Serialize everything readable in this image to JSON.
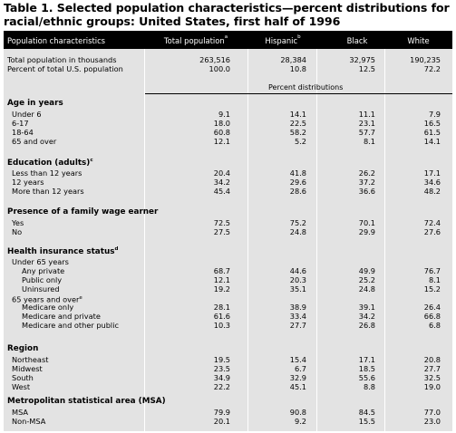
{
  "title": "Table 1.  Selected population characteristics—percent distributions for racial/ethnic groups: United States, first half of 1996",
  "header": {
    "col0": "Population characteristics",
    "col1": "Total population",
    "col1_sup": "a",
    "col2": "Hispanic",
    "col2_sup": "b",
    "col3": "Black",
    "col4": "White"
  },
  "summary_rows": [
    {
      "label": "Total population in thousands",
      "values": [
        "263,516",
        "28,384",
        "32,975",
        "190,235"
      ]
    },
    {
      "label": "Percent of total U.S. population",
      "values": [
        "100.0",
        "10.8",
        "12.5",
        "72.2"
      ]
    }
  ],
  "percent_label": "Percent distributions",
  "sections": [
    {
      "title": "Age in years",
      "title_sup": "",
      "rows": [
        {
          "label": "Under 6",
          "indent": 1,
          "values": [
            "9.1",
            "14.1",
            "11.1",
            "7.9"
          ]
        },
        {
          "label": "6-17",
          "indent": 1,
          "values": [
            "18.0",
            "22.5",
            "23.1",
            "16.5"
          ]
        },
        {
          "label": "18-64",
          "indent": 1,
          "values": [
            "60.8",
            "58.2",
            "57.7",
            "61.5"
          ]
        },
        {
          "label": "65 and over",
          "indent": 1,
          "values": [
            "12.1",
            "5.2",
            "8.1",
            "14.1"
          ]
        }
      ]
    },
    {
      "title": "Education (adults)",
      "title_sup": "c",
      "rows": [
        {
          "label": "Less than 12 years",
          "indent": 1,
          "values": [
            "20.4",
            "41.8",
            "26.2",
            "17.1"
          ]
        },
        {
          "label": "12 years",
          "indent": 1,
          "values": [
            "34.2",
            "29.6",
            "37.2",
            "34.6"
          ]
        },
        {
          "label": "More than 12 years",
          "indent": 1,
          "values": [
            "45.4",
            "28.6",
            "36.6",
            "48.2"
          ]
        }
      ]
    },
    {
      "title": "Presence of a family wage earner",
      "title_sup": "",
      "rows": [
        {
          "label": "Yes",
          "indent": 1,
          "values": [
            "72.5",
            "75.2",
            "70.1",
            "72.4"
          ]
        },
        {
          "label": "No",
          "indent": 1,
          "values": [
            "27.5",
            "24.8",
            "29.9",
            "27.6"
          ]
        }
      ]
    },
    {
      "title": "Health insurance status",
      "title_sup": "d",
      "rows": [
        {
          "label": "Under 65 years",
          "indent": 1,
          "values": [
            "",
            "",
            "",
            ""
          ]
        },
        {
          "label": "Any private",
          "indent": 2,
          "values": [
            "68.7",
            "44.6",
            "49.9",
            "76.7"
          ]
        },
        {
          "label": "Public only",
          "indent": 2,
          "values": [
            "12.1",
            "20.3",
            "25.2",
            "8.1"
          ]
        },
        {
          "label": "Uninsured",
          "indent": 2,
          "values": [
            "19.2",
            "35.1",
            "24.8",
            "15.2"
          ]
        },
        {
          "label": "65 years and over",
          "label_sup": "e",
          "indent": 1,
          "values": [
            "",
            "",
            "",
            ""
          ]
        },
        {
          "label": "Medicare only",
          "indent": 2,
          "values": [
            "28.1",
            "38.9",
            "39.1",
            "26.4"
          ]
        },
        {
          "label": "Medicare and private",
          "indent": 2,
          "values": [
            "61.6",
            "33.4",
            "34.2",
            "66.8"
          ]
        },
        {
          "label": "Medicare and other public",
          "indent": 2,
          "values": [
            "10.3",
            "27.7",
            "26.8",
            "6.8"
          ]
        }
      ]
    },
    {
      "title": "Region",
      "title_sup": "",
      "rows": [
        {
          "label": "Northeast",
          "indent": 1,
          "values": [
            "19.5",
            "15.4",
            "17.1",
            "20.8"
          ]
        },
        {
          "label": "Midwest",
          "indent": 1,
          "values": [
            "23.5",
            "6.7",
            "18.5",
            "27.7"
          ]
        },
        {
          "label": "South",
          "indent": 1,
          "values": [
            "34.9",
            "32.9",
            "55.6",
            "32.5"
          ]
        },
        {
          "label": "West",
          "indent": 1,
          "values": [
            "22.2",
            "45.1",
            "8.8",
            "19.0"
          ]
        }
      ]
    },
    {
      "title": "Metropolitan statistical area (MSA)",
      "title_sup": "",
      "rows": [
        {
          "label": "MSA",
          "indent": 1,
          "values": [
            "79.9",
            "90.8",
            "84.5",
            "77.0"
          ]
        },
        {
          "label": "Non-MSA",
          "indent": 1,
          "values": [
            "20.1",
            "9.2",
            "15.5",
            "23.0"
          ]
        }
      ]
    }
  ],
  "colors": {
    "table_bg": "#e3e3e3",
    "header_bg": "#000000",
    "header_text": "#ffffff"
  }
}
